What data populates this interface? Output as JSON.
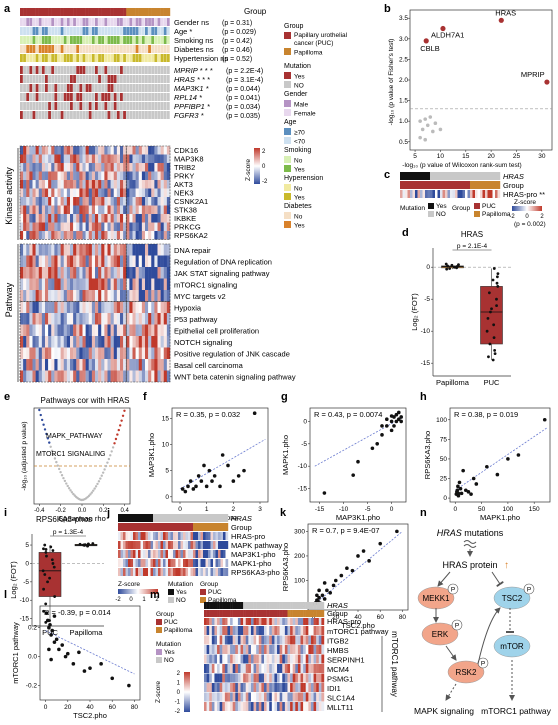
{
  "colors": {
    "puc": "#a83232",
    "papilloma": "#c8842e",
    "yes": "#222222",
    "no": "#c8c8c8",
    "male": "#b593c4",
    "female": "#e8d8ee",
    "age_ge70": "#5b8fbf",
    "age_lt70": "#cde0f0",
    "smoking_no": "#d8f0b4",
    "smoking_yes": "#7cba4a",
    "hyper_no": "#f1eaa0",
    "hyper_yes": "#c9b92b",
    "diab_no": "#f5dfc5",
    "diab_yes": "#d9822b",
    "red": "#c0392b",
    "blue": "#2f4b9c",
    "fit": "#6a7bd0"
  },
  "panels": {
    "a": "a",
    "b": "b",
    "c": "c",
    "d": "d",
    "e": "e",
    "f": "f",
    "g": "g",
    "h": "h",
    "i": "i",
    "j": "j",
    "k": "k",
    "l": "l",
    "m": "m",
    "n": "n"
  },
  "panel_a": {
    "group_label": "Group",
    "clinical": [
      {
        "name": "Gender",
        "sig": "ns",
        "p": "(p = 0.31)"
      },
      {
        "name": "Age",
        "sig": "*",
        "p": "(p = 0.029)"
      },
      {
        "name": "Smoking",
        "sig": "ns",
        "p": "(p = 0.42)"
      },
      {
        "name": "Diabetes",
        "sig": "ns",
        "p": "(p = 0.46)"
      },
      {
        "name": "Hypertension",
        "sig": "ns",
        "p": "(p = 0.52)"
      }
    ],
    "mutations": [
      {
        "name": "MPRIP",
        "sig": "* * *",
        "p": "(p = 2.2E-4)"
      },
      {
        "name": "HRAS",
        "sig": "* * *",
        "p": "(p = 3.1E-4)"
      },
      {
        "name": "MAP3K1",
        "sig": "*",
        "p": "(p = 0.044)"
      },
      {
        "name": "RPL14",
        "sig": "*",
        "p": "(p = 0.041)"
      },
      {
        "name": "PPFIBP1",
        "sig": "*",
        "p": "(p = 0.034)"
      },
      {
        "name": "FGFR3",
        "sig": "*",
        "p": "(p = 0.035)"
      }
    ],
    "kinase_label": "Kinase activity",
    "kinases": [
      "CDK16",
      "MAP3K8",
      "TRIB2",
      "PRKY",
      "AKT3",
      "NEK3",
      "CSNK2A1",
      "STK38",
      "IKBKE",
      "PRKCG",
      "RPS6KA2"
    ],
    "pathway_label": "Pathway",
    "pathways": [
      "DNA repair",
      "Regulation of DNA replication",
      "JAK STAT signaling pathway",
      "mTORC1 signaling",
      "MYC targets v2",
      "Hypoxia",
      "P53 pathway",
      "Epithelial cell proliferation",
      "NOTCH signaling",
      "Positive regulation of JNK cascade",
      "Basal cell carcinoma",
      "WNT beta catenin signaling pathway"
    ],
    "legend": {
      "group_title": "Group",
      "group_items": [
        "Papillary urothelial cancer (PUC)",
        "Papilloma"
      ],
      "mutation_title": "Mutation",
      "mutation_items": [
        "Yes",
        "NO"
      ],
      "gender_title": "Gender",
      "gender_items": [
        "Male",
        "Female"
      ],
      "age_title": "Age",
      "age_items": [
        "≥70",
        "<70"
      ],
      "smoking_title": "Smoking",
      "smoking_items": [
        "No",
        "Yes"
      ],
      "hyper_title": "Hyperension",
      "hyper_items": [
        "No",
        "Yes"
      ],
      "diab_title": "Diabetes",
      "diab_items": [
        "No",
        "Yes"
      ],
      "zscore_title": "Z-score",
      "zscore_ticks": [
        "2",
        "0",
        "-2"
      ]
    }
  },
  "chart_data": [
    {
      "panel": "b",
      "type": "scatter",
      "xlabel": "-log₁₀ (p value of Wilcoxon rank-sum test)",
      "ylabel": "-log₁₀ (p value of Fisher's test)",
      "xticks": [
        "5",
        "10",
        "15",
        "20",
        "25",
        "30"
      ],
      "yticks": [
        "0.5",
        "1.0",
        "1.5",
        "2.0",
        "2.5",
        "3.0",
        "3.5"
      ],
      "xlim": [
        4,
        32
      ],
      "ylim": [
        0.3,
        3.7
      ],
      "highlighted": [
        {
          "label": "HRAS",
          "x": 22,
          "y": 3.45
        },
        {
          "label": "ALDH7A1",
          "x": 10.5,
          "y": 3.25
        },
        {
          "label": "CBLB",
          "x": 7.2,
          "y": 2.95
        },
        {
          "label": "MPRIP",
          "x": 31,
          "y": 1.95
        }
      ],
      "others": [
        [
          6,
          1.0
        ],
        [
          7,
          1.05
        ],
        [
          8,
          1.1
        ],
        [
          6.5,
          0.8
        ],
        [
          7.5,
          0.9
        ],
        [
          9,
          0.95
        ],
        [
          8.5,
          0.75
        ],
        [
          10,
          0.8
        ],
        [
          6,
          0.6
        ],
        [
          7,
          0.55
        ]
      ]
    },
    {
      "panel": "d",
      "type": "box",
      "title": "HRAS",
      "ylabel": "Log₂ (FOT)",
      "categories": [
        "Papilloma",
        "PUC"
      ],
      "pvalue": "p = 2.1E-4",
      "yticks": [
        "0",
        "-5",
        "-10",
        "-15"
      ],
      "ylim": [
        -17,
        3
      ],
      "papilloma": [
        0.3,
        0.1,
        -0.2,
        0.4,
        0.2,
        -0.1,
        0.0,
        0.5,
        -0.3,
        0.2
      ],
      "puc": [
        -0.2,
        -1.0,
        -2.0,
        -3.0,
        -4.0,
        -5.0,
        -6.0,
        -7.0,
        -8.0,
        -9.0,
        -10.0,
        -11.0,
        -12.0,
        -13.0,
        -13.5,
        -14.0,
        -14.5,
        -1.5,
        -2.5,
        -6.5
      ]
    },
    {
      "panel": "e",
      "type": "volcano",
      "title": "Pathways cor with HRAS",
      "xlabel": "Spearman rho",
      "ylabel": "-log₁₀ (adjusted p value)",
      "xticks": [
        "-0.4",
        "-0.2",
        "0.0",
        "0.2",
        "0.4"
      ],
      "xlim": [
        -0.45,
        0.45
      ],
      "annotations": [
        "MAPK_PATHWAY",
        "MTORC1 SIGNALING"
      ]
    },
    {
      "panel": "f",
      "type": "scatter",
      "xlabel": "HRAS.pro",
      "ylabel": "MAP3K1.pho",
      "stat": "R = 0.35",
      "pvalue": "p = 0.032",
      "xticks": [
        "0",
        "1",
        "2",
        "3"
      ],
      "yticks": [
        "0",
        "5",
        "10",
        "15"
      ],
      "xlim": [
        -0.3,
        3.3
      ],
      "ylim": [
        -1,
        17
      ],
      "points": [
        [
          0.1,
          1.5
        ],
        [
          0.2,
          1
        ],
        [
          0.3,
          2
        ],
        [
          0.4,
          3
        ],
        [
          0.5,
          1.5
        ],
        [
          0.6,
          2
        ],
        [
          0.7,
          4
        ],
        [
          0.8,
          3
        ],
        [
          0.9,
          6
        ],
        [
          1.0,
          2
        ],
        [
          1.1,
          5
        ],
        [
          1.2,
          3
        ],
        [
          1.3,
          4
        ],
        [
          1.5,
          2
        ],
        [
          1.6,
          8
        ],
        [
          1.8,
          6
        ],
        [
          2.0,
          3
        ],
        [
          2.2,
          4
        ],
        [
          2.4,
          5
        ],
        [
          2.8,
          16
        ]
      ],
      "fit": [
        [
          0,
          1.5
        ],
        [
          3.2,
          11
        ]
      ]
    },
    {
      "panel": "g",
      "type": "scatter",
      "xlabel": "MAP3K1.pho",
      "ylabel": "MAPK1.pho",
      "stat": "R = 0.43",
      "pvalue": "p = 0.0074",
      "xticks": [
        "-15",
        "-10",
        "-5",
        "0"
      ],
      "yticks": [
        "-15",
        "-10",
        "-5",
        "0"
      ],
      "xlim": [
        -17,
        3
      ],
      "ylim": [
        -18,
        3
      ],
      "points": [
        [
          -14,
          -16
        ],
        [
          -8,
          -12
        ],
        [
          -7,
          -9
        ],
        [
          -4,
          -6
        ],
        [
          -3,
          -5
        ],
        [
          -2,
          -3
        ],
        [
          -1,
          -1
        ],
        [
          0,
          -2
        ],
        [
          0,
          0
        ],
        [
          0.5,
          1
        ],
        [
          1,
          0
        ],
        [
          1,
          1.5
        ],
        [
          1.5,
          0.5
        ],
        [
          2,
          1
        ],
        [
          2,
          0
        ],
        [
          -1,
          0.5
        ],
        [
          0.5,
          -1
        ],
        [
          -2,
          -1
        ],
        [
          1.5,
          2
        ],
        [
          0,
          1.2
        ]
      ],
      "fit": [
        [
          -16,
          -10
        ],
        [
          2.5,
          1
        ]
      ]
    },
    {
      "panel": "h",
      "type": "scatter",
      "xlabel": "MAPK1.pho",
      "ylabel": "RPS6KA3.pho",
      "stat": "R = 0.38",
      "pvalue": "p = 0.019",
      "xticks": [
        "0",
        "50",
        "100",
        "150"
      ],
      "yticks": [
        "0",
        "25",
        "50",
        "75",
        "100"
      ],
      "xlim": [
        -10,
        180
      ],
      "ylim": [
        -5,
        115
      ],
      "points": [
        [
          2,
          5
        ],
        [
          3,
          8
        ],
        [
          4,
          10
        ],
        [
          5,
          15
        ],
        [
          6,
          3
        ],
        [
          8,
          20
        ],
        [
          10,
          12
        ],
        [
          12,
          6
        ],
        [
          15,
          35
        ],
        [
          20,
          10
        ],
        [
          25,
          8
        ],
        [
          30,
          5
        ],
        [
          35,
          25
        ],
        [
          40,
          18
        ],
        [
          60,
          40
        ],
        [
          80,
          30
        ],
        [
          100,
          50
        ],
        [
          120,
          55
        ],
        [
          170,
          100
        ],
        [
          6,
          6
        ]
      ],
      "fit": [
        [
          0,
          10
        ],
        [
          175,
          90
        ]
      ]
    },
    {
      "panel": "i",
      "type": "box",
      "title": "RPS6KA3-phos",
      "ylabel": "Log₂ (FOT)",
      "categories": [
        "PUC",
        "Papilloma"
      ],
      "pvalue": "p = 1.3E-4",
      "yticks": [
        "5",
        "0",
        "-5",
        "-10",
        "-15"
      ],
      "ylim": [
        -17,
        8
      ],
      "puc": [
        4.5,
        4.0,
        3.5,
        3.0,
        2.0,
        1.0,
        0.0,
        -1.0,
        -2.0,
        -3.0,
        -4.0,
        -5.0,
        -7.0,
        -9.0,
        -11.0,
        -13.0,
        -15.5,
        -16.0,
        5.0,
        3.8
      ],
      "papilloma": [
        5.2,
        5.0,
        5.3,
        4.8,
        5.1,
        5.4,
        4.9,
        5.0,
        5.2,
        4.7
      ]
    },
    {
      "panel": "k",
      "type": "scatter",
      "xlabel": "TSC2.pho",
      "ylabel": "RPS6KA3.pho",
      "stat": "R = 0.7",
      "pvalue": "p = 9.4E-07",
      "xticks": [
        "0",
        "20",
        "40",
        "60",
        "80"
      ],
      "yticks": [
        "0",
        "100",
        "200",
        "300"
      ],
      "xlim": [
        -5,
        85
      ],
      "ylim": [
        -20,
        330
      ],
      "points": [
        [
          1,
          5
        ],
        [
          2,
          10
        ],
        [
          3,
          20
        ],
        [
          4,
          15
        ],
        [
          5,
          30
        ],
        [
          6,
          8
        ],
        [
          8,
          40
        ],
        [
          10,
          25
        ],
        [
          12,
          60
        ],
        [
          15,
          50
        ],
        [
          18,
          80
        ],
        [
          20,
          100
        ],
        [
          25,
          120
        ],
        [
          30,
          150
        ],
        [
          35,
          140
        ],
        [
          40,
          200
        ],
        [
          45,
          220
        ],
        [
          50,
          180
        ],
        [
          60,
          250
        ],
        [
          75,
          300
        ],
        [
          3,
          40
        ],
        [
          5,
          60
        ],
        [
          10,
          90
        ]
      ],
      "fit": [
        [
          0,
          0
        ],
        [
          80,
          300
        ]
      ]
    },
    {
      "panel": "l",
      "type": "scatter",
      "xlabel": "TSC2.pho",
      "ylabel": "mTORC1 pathway",
      "stat": "R = -0.39",
      "pvalue": "p = 0.014",
      "xticks": [
        "0",
        "20",
        "40",
        "60",
        "80"
      ],
      "yticks": [
        "-0.2",
        "0.0",
        "0.2"
      ],
      "xlim": [
        -5,
        85
      ],
      "ylim": [
        -0.3,
        0.35
      ],
      "points": [
        [
          1,
          0.3
        ],
        [
          2,
          0.25
        ],
        [
          3,
          0.2
        ],
        [
          4,
          0.22
        ],
        [
          5,
          0.15
        ],
        [
          6,
          0.18
        ],
        [
          8,
          0.1
        ],
        [
          10,
          0.12
        ],
        [
          12,
          0.05
        ],
        [
          15,
          0.08
        ],
        [
          18,
          0.0
        ],
        [
          20,
          0.02
        ],
        [
          25,
          -0.05
        ],
        [
          30,
          0.03
        ],
        [
          35,
          -0.1
        ],
        [
          40,
          -0.08
        ],
        [
          50,
          -0.05
        ],
        [
          60,
          -0.15
        ],
        [
          75,
          -0.2
        ],
        [
          3,
          0.05
        ],
        [
          5,
          -0.02
        ],
        [
          8,
          0.28
        ]
      ],
      "fit": [
        [
          0,
          0.18
        ],
        [
          80,
          -0.12
        ]
      ]
    }
  ],
  "panel_c": {
    "rows": [
      "HRAS",
      "Group",
      "HRAS-pro **"
    ],
    "legend_mutation": [
      "Mutation",
      "Yes",
      "NO"
    ],
    "legend_group": [
      "Group",
      "PUC",
      "Papilloma"
    ],
    "zscore_title": "Z-score",
    "zscore_ticks": [
      "-2",
      "0",
      "2"
    ],
    "pvalue": "(p = 0.002)"
  },
  "panel_j": {
    "rows": [
      "HRAS",
      "Group",
      "HRAS-pro",
      "MAPK pathway",
      "MAP3K1-pho",
      "MAPK1-pho",
      "RPS6KA3-pho"
    ],
    "legend_z": [
      "Z-score",
      "-2",
      "0",
      "1",
      "2"
    ],
    "legend_mutation": [
      "Mutation",
      "Yes",
      "NO"
    ],
    "legend_group": [
      "Group",
      "PUC",
      "Papilloma"
    ]
  },
  "panel_m": {
    "rows": [
      "HRAS",
      "Group",
      "HRAS-pro",
      "mTORC1 pathway",
      "ITGB2",
      "HMBS",
      "SERPINH1",
      "MCM4",
      "PSMG1",
      "IDI1",
      "SLC1A4",
      "MLLT11"
    ],
    "side_label": "mTORC1 pathway",
    "legend_group": [
      "Group",
      "PUC",
      "Papilloma"
    ],
    "legend_mutation": [
      "Mutation",
      "Yes",
      "NO"
    ],
    "zscore_title": "Z-score",
    "zscore_ticks": [
      "2",
      "1",
      "0",
      "-1",
      "-2"
    ]
  },
  "panel_n": {
    "title_gene": "HRAS",
    "title_rest": " mutations",
    "protein": "HRAS protein",
    "nodes": [
      "MEKK1",
      "ERK",
      "RSK2",
      "TSC2",
      "mTOR"
    ],
    "phospho": "P",
    "outputs": [
      "MAPK signaling",
      "mTORC1 pathway"
    ]
  }
}
